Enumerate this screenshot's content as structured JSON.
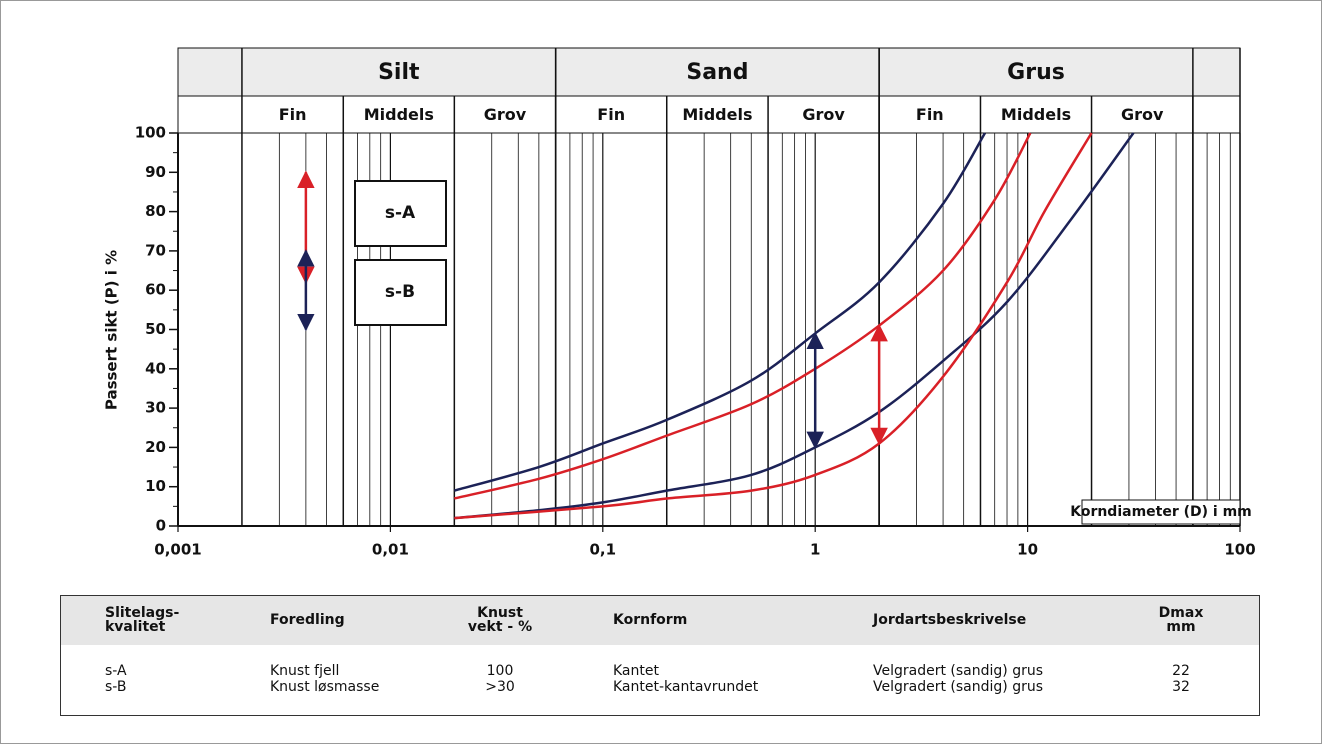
{
  "chart_data": {
    "type": "line",
    "x_scale": "log",
    "y_label": "Passert sikt (P) i %",
    "x_label": "Korndiameter (D) i mm",
    "xlim": [
      0.001,
      100
    ],
    "ylim": [
      0,
      100
    ],
    "xticks": [
      {
        "value": 0.001,
        "label": "0,001"
      },
      {
        "value": 0.01,
        "label": "0,01"
      },
      {
        "value": 0.1,
        "label": "0,1"
      },
      1,
      10,
      100
    ],
    "yticks": [
      0,
      10,
      20,
      30,
      40,
      50,
      60,
      70,
      80,
      90,
      100
    ],
    "y_minor_ticks": [
      5,
      15,
      25,
      35,
      45,
      55,
      65,
      75,
      85,
      95
    ],
    "x_minor_grid": [
      0.002,
      0.003,
      0.004,
      0.005,
      0.006,
      0.007,
      0.008,
      0.009,
      0.02,
      0.03,
      0.04,
      0.05,
      0.06,
      0.07,
      0.08,
      0.09,
      0.2,
      0.3,
      0.4,
      0.5,
      0.6,
      0.7,
      0.8,
      0.9,
      2,
      3,
      4,
      5,
      6,
      7,
      8,
      9,
      20,
      30,
      40,
      50,
      60,
      70,
      80,
      90
    ],
    "bands": [
      {
        "label": "Silt",
        "from": 0.002,
        "to": 0.06,
        "sub": [
          {
            "label": "Fin",
            "from": 0.002,
            "to": 0.006
          },
          {
            "label": "Middels",
            "from": 0.006,
            "to": 0.02
          },
          {
            "label": "Grov",
            "from": 0.02,
            "to": 0.06
          }
        ]
      },
      {
        "label": "Sand",
        "from": 0.06,
        "to": 2,
        "sub": [
          {
            "label": "Fin",
            "from": 0.06,
            "to": 0.2
          },
          {
            "label": "Middels",
            "from": 0.2,
            "to": 0.6
          },
          {
            "label": "Grov",
            "from": 0.6,
            "to": 2
          }
        ]
      },
      {
        "label": "Grus",
        "from": 2,
        "to": 60,
        "sub": [
          {
            "label": "Fin",
            "from": 2,
            "to": 6
          },
          {
            "label": "Middels",
            "from": 6,
            "to": 20
          },
          {
            "label": "Grov",
            "from": 20,
            "to": 60
          }
        ]
      }
    ],
    "series": [
      {
        "color": "#1c2257",
        "x": [
          0.02,
          0.05,
          0.1,
          0.2,
          0.5,
          1,
          2,
          4,
          6.3
        ],
        "values": [
          9,
          15,
          21,
          27,
          37,
          49,
          62,
          82,
          100
        ]
      },
      {
        "color": "#1c2257",
        "x": [
          0.02,
          0.05,
          0.1,
          0.2,
          0.5,
          1,
          2,
          4,
          8,
          16,
          31.5
        ],
        "values": [
          2,
          4,
          6,
          9,
          13,
          20,
          29,
          42,
          57,
          78,
          100
        ]
      },
      {
        "color": "#d92027",
        "x": [
          0.02,
          0.05,
          0.1,
          0.2,
          0.5,
          1,
          2,
          4,
          7,
          10.3
        ],
        "values": [
          7,
          12,
          17,
          23,
          31,
          40,
          51,
          65,
          83,
          100
        ]
      },
      {
        "color": "#d92027",
        "x": [
          0.02,
          0.1,
          0.2,
          0.5,
          1,
          2,
          4,
          8,
          12,
          20
        ],
        "values": [
          2,
          5,
          7,
          9,
          13,
          21,
          38,
          62,
          80,
          100
        ]
      }
    ],
    "ranges": [
      {
        "color": "#d92027",
        "x": 0.004,
        "values": [
          62,
          90
        ]
      },
      {
        "color": "#1c2257",
        "x": 0.004,
        "values": [
          50,
          70
        ]
      },
      {
        "color": "#1c2257",
        "x": 1,
        "values": [
          20,
          49
        ]
      },
      {
        "color": "#d92027",
        "x": 2,
        "values": [
          21,
          51
        ]
      }
    ],
    "boxes": [
      "s-A",
      "s-B"
    ]
  },
  "table": {
    "header": [
      [
        "Slitelags-",
        "kvalitet"
      ],
      [
        "Foredling"
      ],
      [
        "Knust",
        "vekt - %"
      ],
      [
        "Kornform"
      ],
      [
        "Jordartsbeskrivelse"
      ],
      [
        "Dmax",
        "mm"
      ]
    ],
    "rows": [
      [
        "s-A",
        "Knust fjell",
        "100",
        "Kantet",
        "Velgradert (sandig) grus",
        "22"
      ],
      [
        "s-B",
        "Knust løsmasse",
        ">30",
        "Kantet-kantavrundet",
        "Velgradert (sandig) grus",
        "32"
      ]
    ]
  }
}
